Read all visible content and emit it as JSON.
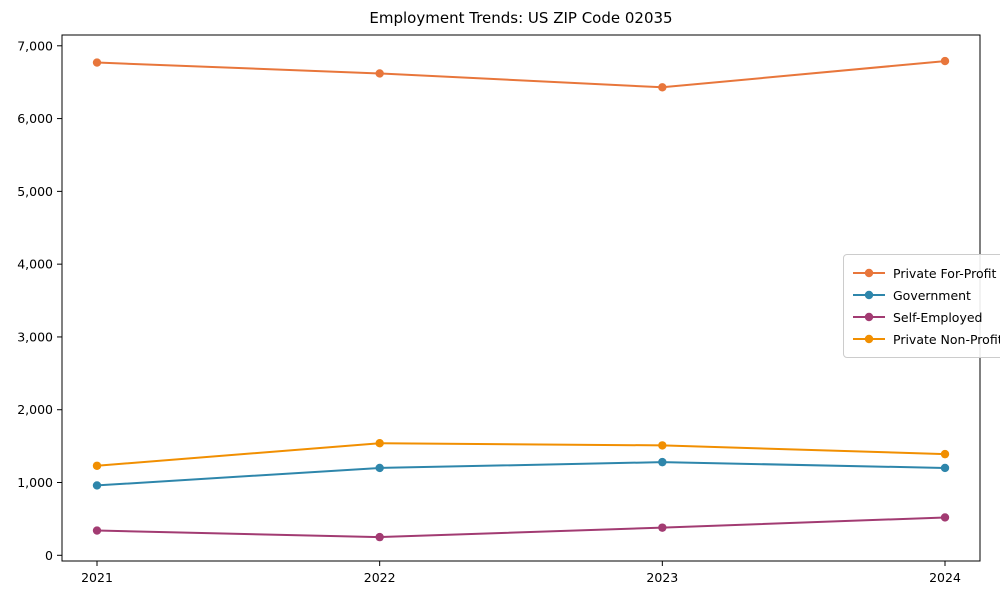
{
  "title": "Employment Trends: US ZIP Code 02035",
  "chart_data": {
    "type": "line",
    "title": "Employment Trends: US ZIP Code 02035",
    "x": [
      "2021",
      "2022",
      "2023",
      "2024"
    ],
    "series": [
      {
        "name": "Private For-Profit",
        "color": "#E8763B",
        "values": [
          6770,
          6620,
          6430,
          6790
        ]
      },
      {
        "name": "Government",
        "color": "#2E86AB",
        "values": [
          960,
          1200,
          1280,
          1200
        ]
      },
      {
        "name": "Self-Employed",
        "color": "#A23B72",
        "values": [
          340,
          250,
          380,
          520
        ]
      },
      {
        "name": "Private Non-Profit",
        "color": "#F18F01",
        "values": [
          1230,
          1540,
          1510,
          1390
        ]
      }
    ],
    "xlabel": "",
    "ylabel": "",
    "ylim": [
      0,
      7000
    ],
    "yticks": [
      0,
      1000,
      2000,
      3000,
      4000,
      5000,
      6000,
      7000
    ],
    "ytick_labels": [
      "0",
      "1,000",
      "2,000",
      "3,000",
      "4,000",
      "5,000",
      "6,000",
      "7,000"
    ],
    "xtick_labels": [
      "2021",
      "2022",
      "2023",
      "2024"
    ],
    "grid": false,
    "legend_position": "center-right",
    "marker": "circle"
  }
}
